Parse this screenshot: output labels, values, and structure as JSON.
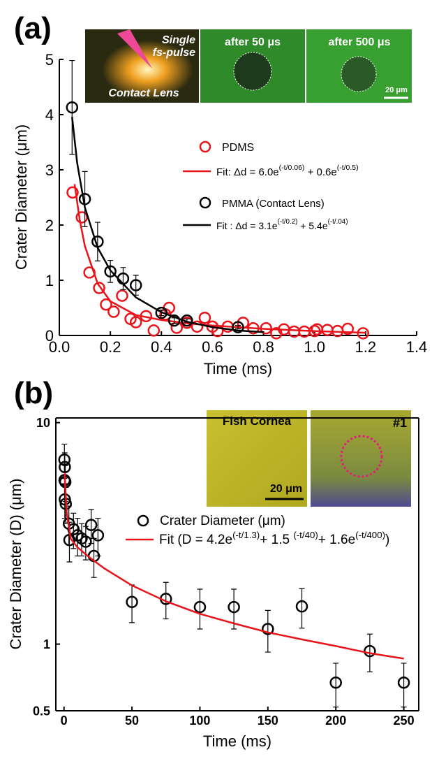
{
  "chart_data": [
    {
      "type": "scatter",
      "panel_label": "(a)",
      "xlabel": "Time (ms)",
      "ylabel": "Crater Diameter (μm)",
      "xlim": [
        0,
        1.4
      ],
      "ylim": [
        0,
        5
      ],
      "xticks": [
        {
          "value": 0,
          "label": "0.0"
        },
        0.2,
        0.4,
        0.6,
        0.8,
        {
          "value": 1,
          "label": "1.0"
        },
        1.2,
        1.4
      ],
      "yticks": [
        0,
        1,
        2,
        3,
        4,
        5
      ],
      "inset_labels": [
        "Single",
        "fs-pulse",
        "Contact Lens",
        "after 50 μs",
        "after 500 μs",
        "20 μm"
      ],
      "series": [
        {
          "name": [
            "PDMS"
          ],
          "type": "scatter",
          "color": "#e8141a",
          "x": [
            0.052,
            0.088,
            0.118,
            0.156,
            0.183,
            0.213,
            0.246,
            0.279,
            0.3,
            0.34,
            0.37,
            0.416,
            0.43,
            0.46,
            0.5,
            0.54,
            0.57,
            0.6,
            0.62,
            0.66,
            0.72,
            0.76,
            0.81,
            0.85,
            0.88,
            0.92,
            0.96,
            1.0,
            1.01,
            1.05,
            1.09,
            1.13,
            1.19
          ],
          "values": [
            2.59,
            2.14,
            1.14,
            0.86,
            0.56,
            0.43,
            0.72,
            0.3,
            0.24,
            0.35,
            0.09,
            0.38,
            0.5,
            0.14,
            0.23,
            0.16,
            0.32,
            0.16,
            0.08,
            0.16,
            0.23,
            0.13,
            0.13,
            0.04,
            0.11,
            0.07,
            0.07,
            0.08,
            0.11,
            0.1,
            0.08,
            0.12,
            0.04
          ]
        },
        {
          "name": [
            "Fit: Δd = 6.0e",
            "(-t/0.06)",
            " + 0.6e",
            "(-t/0.5)"
          ],
          "type": "line",
          "color": "#e8141a",
          "x": [
            0.06,
            0.08,
            0.1,
            0.15,
            0.2,
            0.3,
            0.4,
            0.5,
            0.6,
            0.8,
            1.0,
            1.2
          ],
          "values": [
            2.74,
            2.09,
            1.62,
            0.94,
            0.62,
            0.37,
            0.28,
            0.22,
            0.18,
            0.12,
            0.08,
            0.05
          ]
        },
        {
          "name": [
            "PMMA (Contact Lens)"
          ],
          "type": "scatter",
          "color": "#000000",
          "x": [
            0.05,
            0.1,
            0.15,
            0.2,
            0.25,
            0.3,
            0.4,
            0.45,
            0.5,
            0.7
          ],
          "values": [
            4.13,
            2.47,
            1.7,
            1.16,
            1.03,
            0.91,
            0.41,
            0.27,
            0.27,
            0.15
          ],
          "errors": [
            0.85,
            0.5,
            0.35,
            0.2,
            0.2,
            0.18,
            0.05,
            0.05,
            0.03,
            0.03
          ]
        },
        {
          "name": [
            "Fit  : Δd = 3.1e",
            "(-t/0.2)",
            " + 5.4e",
            "(-t/.04)"
          ],
          "type": "line",
          "color": "#000000",
          "x": [
            0.05,
            0.07,
            0.1,
            0.15,
            0.2,
            0.3,
            0.4,
            0.5,
            0.6,
            0.7,
            0.8
          ],
          "values": [
            3.96,
            3.12,
            2.32,
            1.59,
            1.18,
            0.69,
            0.42,
            0.25,
            0.15,
            0.09,
            0.06
          ]
        }
      ]
    },
    {
      "type": "scatter",
      "panel_label": "(b)",
      "xlabel": "Time (ms)",
      "ylabel": "Crater Diameter (D) (μm)",
      "yscale": "log",
      "xlim": [
        -6,
        261
      ],
      "ylim": [
        0.5,
        10.5
      ],
      "xticks": [
        0,
        50,
        100,
        150,
        200,
        250
      ],
      "yticks": [
        0.5,
        1,
        10
      ],
      "inset_labels": [
        "Fish Cornea",
        "20 μm",
        "#1"
      ],
      "series": [
        {
          "name": [
            "Crater Diameter (μm)"
          ],
          "type": "scatter",
          "color": "#000000",
          "x": [
            0.3,
            0.6,
            0.4,
            1,
            0.6,
            1.3,
            3.6,
            4,
            7,
            10,
            13,
            16,
            20,
            22,
            25,
            50,
            75,
            100,
            125,
            150,
            175,
            200,
            225,
            250
          ],
          "values": [
            6.8,
            6.3,
            5.5,
            5.4,
            4.5,
            4.3,
            3.5,
            2.95,
            3.3,
            3.1,
            3.0,
            2.9,
            3.45,
            2.5,
            3.1,
            1.55,
            1.6,
            1.47,
            1.47,
            1.17,
            1.48,
            0.67,
            0.93,
            0.67
          ],
          "errors": [
            1.2,
            1.0,
            1.0,
            1.0,
            0.8,
            0.8,
            0.7,
            0.6,
            0.6,
            0.6,
            0.5,
            0.5,
            0.6,
            0.5,
            0.6,
            0.3,
            0.3,
            0.3,
            0.3,
            0.25,
            0.3,
            0.15,
            0.18,
            0.15
          ]
        },
        {
          "name": [
            "Fit (D  = 4.2e",
            "(-t/1.3)",
            "+ 1.5 ",
            "(-t/40)",
            "+ 1.6e",
            "(-t/400)",
            ")"
          ],
          "type": "line",
          "color": "#e8141a",
          "x": [
            0.5,
            1,
            2,
            5,
            10,
            20,
            30,
            50,
            75,
            100,
            125,
            150,
            175,
            200,
            225,
            250
          ],
          "values": [
            5.94,
            5.0,
            3.92,
            2.99,
            2.73,
            2.43,
            2.19,
            1.84,
            1.56,
            1.37,
            1.24,
            1.13,
            1.05,
            0.98,
            0.91,
            0.86
          ]
        }
      ]
    }
  ]
}
